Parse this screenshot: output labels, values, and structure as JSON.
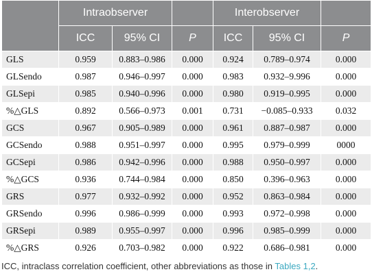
{
  "header": {
    "group1": "Intraobserver",
    "group2": "Interobserver",
    "icc": "ICC",
    "ci": "95% CI",
    "p": "P"
  },
  "rows": [
    {
      "name": "GLS",
      "intra": [
        "0.959",
        "0.883–0.986",
        "0.000"
      ],
      "inter": [
        "0.924",
        "0.789–0.974",
        "0.000"
      ]
    },
    {
      "name": "GLSendo",
      "intra": [
        "0.987",
        "0.946–0.997",
        "0.000"
      ],
      "inter": [
        "0.983",
        "0.932–9.996",
        "0.000"
      ]
    },
    {
      "name": "GLSepi",
      "intra": [
        "0.985",
        "0.940–0.996",
        "0.000"
      ],
      "inter": [
        "0.980",
        "0.919–0.995",
        "0.000"
      ]
    },
    {
      "name": "%△GLS",
      "intra": [
        "0.892",
        "0.566–0.973",
        "0.001"
      ],
      "inter": [
        "0.731",
        "−0.085–0.933",
        "0.032"
      ]
    },
    {
      "name": "GCS",
      "intra": [
        "0.967",
        "0.905–0.989",
        "0.000"
      ],
      "inter": [
        "0.961",
        "0.887–0.987",
        "0.000"
      ]
    },
    {
      "name": "GCSendo",
      "intra": [
        "0.988",
        "0.951–0.997",
        "0.000"
      ],
      "inter": [
        "0.995",
        "0.979–0.999",
        "0000"
      ]
    },
    {
      "name": "GCSepi",
      "intra": [
        "0.986",
        "0.942–0.996",
        "0.000"
      ],
      "inter": [
        "0.988",
        "0.950–0.997",
        "0.000"
      ]
    },
    {
      "name": "%△GCS",
      "intra": [
        "0.936",
        "0.744–0.984",
        "0.000"
      ],
      "inter": [
        "0.850",
        "0.396–0.963",
        "0.000"
      ]
    },
    {
      "name": "GRS",
      "intra": [
        "0.977",
        "0.932–0.992",
        "0.000"
      ],
      "inter": [
        "0.952",
        "0.863–0.984",
        "0.000"
      ]
    },
    {
      "name": "GRSendo",
      "intra": [
        "0.996",
        "0.986–0.999",
        "0.000"
      ],
      "inter": [
        "0.993",
        "0.972–0.998",
        "0.000"
      ]
    },
    {
      "name": "GRSepi",
      "intra": [
        "0.989",
        "0.955–0.997",
        "0.000"
      ],
      "inter": [
        "0.996",
        "0.985–0.999",
        "0.000"
      ]
    },
    {
      "name": "%△GRS",
      "intra": [
        "0.926",
        "0.703–0.982",
        "0.000"
      ],
      "inter": [
        "0.922",
        "0.686–0.981",
        "0.000"
      ]
    }
  ],
  "footnote": {
    "text": "ICC, intraclass correlation coefficient, other abbreviations as those in ",
    "link": "Tables 1,2",
    "end": "."
  }
}
